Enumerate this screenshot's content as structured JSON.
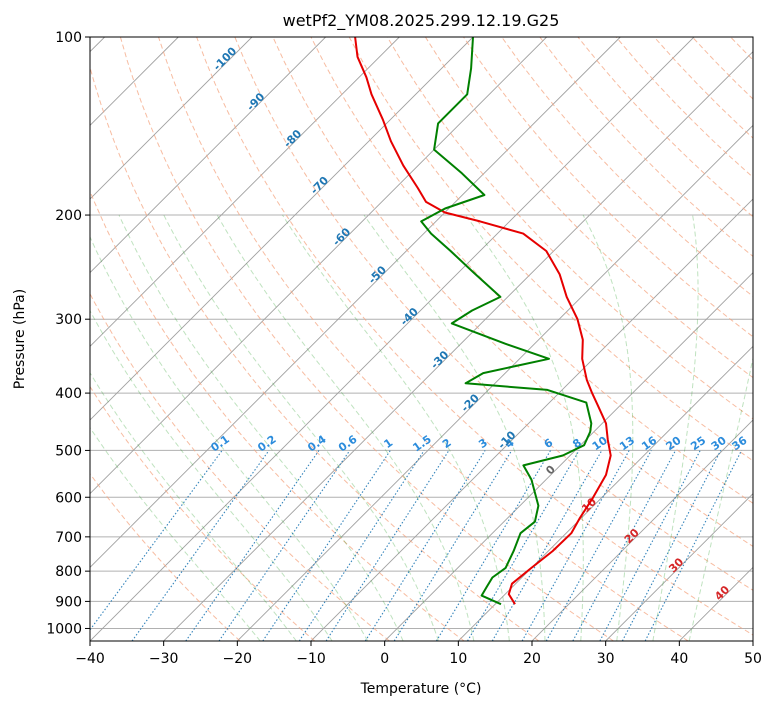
{
  "chart_data": {
    "type": "line",
    "title": "wetPf2_YM08.2025.299.12.19.G25",
    "xlabel": "Temperature (°C)",
    "ylabel": "Pressure (hPa)",
    "xlim": [
      -40,
      50
    ],
    "ylim": [
      1050,
      100
    ],
    "y_scale": "log",
    "skew": true,
    "grid": true,
    "x_ticks": [
      -40,
      -30,
      -20,
      -10,
      0,
      10,
      20,
      30,
      40,
      50
    ],
    "y_ticks": [
      100,
      200,
      300,
      400,
      500,
      600,
      700,
      800,
      900,
      1000
    ],
    "series": [
      {
        "name": "temperature",
        "color": "#e60000",
        "points": [
          [
            12.7,
            910
          ],
          [
            10.5,
            875
          ],
          [
            9.5,
            840
          ],
          [
            10.0,
            790
          ],
          [
            10.6,
            740
          ],
          [
            10.7,
            690
          ],
          [
            9.8,
            650
          ],
          [
            8.8,
            600
          ],
          [
            7.5,
            550
          ],
          [
            5.5,
            510
          ],
          [
            3.0,
            480
          ],
          [
            0.5,
            450
          ],
          [
            -3.0,
            420
          ],
          [
            -5.5,
            400
          ],
          [
            -8.0,
            380
          ],
          [
            -11.5,
            350
          ],
          [
            -14.0,
            325
          ],
          [
            -17.5,
            300
          ],
          [
            -22.0,
            275
          ],
          [
            -26.0,
            252
          ],
          [
            -31.0,
            230
          ],
          [
            -36.5,
            215
          ],
          [
            -44.0,
            205
          ],
          [
            -50.0,
            198
          ],
          [
            -54.0,
            190
          ],
          [
            -57.0,
            180
          ],
          [
            -62.0,
            165
          ],
          [
            -67.0,
            150
          ],
          [
            -71.0,
            138
          ],
          [
            -76.0,
            125
          ],
          [
            -79.0,
            117
          ],
          [
            -83.0,
            108
          ],
          [
            -86.0,
            100
          ]
        ]
      },
      {
        "name": "dewpoint",
        "color": "#008000",
        "points": [
          [
            10.8,
            910
          ],
          [
            7.0,
            880
          ],
          [
            6.5,
            850
          ],
          [
            6.0,
            820
          ],
          [
            6.5,
            790
          ],
          [
            5.3,
            740
          ],
          [
            3.8,
            690
          ],
          [
            4.2,
            660
          ],
          [
            2.5,
            620
          ],
          [
            -2.0,
            560
          ],
          [
            -5.0,
            530
          ],
          [
            -1.0,
            510
          ],
          [
            0.5,
            490
          ],
          [
            -0.5,
            465
          ],
          [
            -1.5,
            450
          ],
          [
            -5.0,
            415
          ],
          [
            -12.0,
            395
          ],
          [
            -24.0,
            385
          ],
          [
            -23.0,
            370
          ],
          [
            -16.0,
            350
          ],
          [
            -24.0,
            330
          ],
          [
            -34.0,
            305
          ],
          [
            -33.0,
            290
          ],
          [
            -31.0,
            275
          ],
          [
            -38.0,
            250
          ],
          [
            -44.0,
            230
          ],
          [
            -49.0,
            215
          ],
          [
            -52.0,
            205
          ],
          [
            -50.5,
            195
          ],
          [
            -47.0,
            185
          ],
          [
            -53.0,
            170
          ],
          [
            -60.0,
            155
          ],
          [
            -63.0,
            140
          ],
          [
            -63.0,
            125
          ],
          [
            -66.0,
            113
          ],
          [
            -70.0,
            100
          ]
        ]
      }
    ],
    "reference_lines": {
      "dry_adiabats_color": "#f4a582",
      "moist_adiabats_color": "#2ca02c",
      "mixing_ratio_color": "#1f77b4"
    },
    "annotations": {
      "isotherm_labels": [
        "-100",
        "-90",
        "-80",
        "-70",
        "-60",
        "-50",
        "-40",
        "-30",
        "-20",
        "-10",
        "0",
        "10",
        "20",
        "30",
        "40"
      ],
      "mixing_ratio_labels": [
        "0.1",
        "0.2",
        "0.4",
        "0.6",
        "1",
        "1.5",
        "2",
        "3",
        "4",
        "6",
        "8",
        "10",
        "13",
        "16",
        "20",
        "25",
        "30",
        "36"
      ]
    }
  }
}
